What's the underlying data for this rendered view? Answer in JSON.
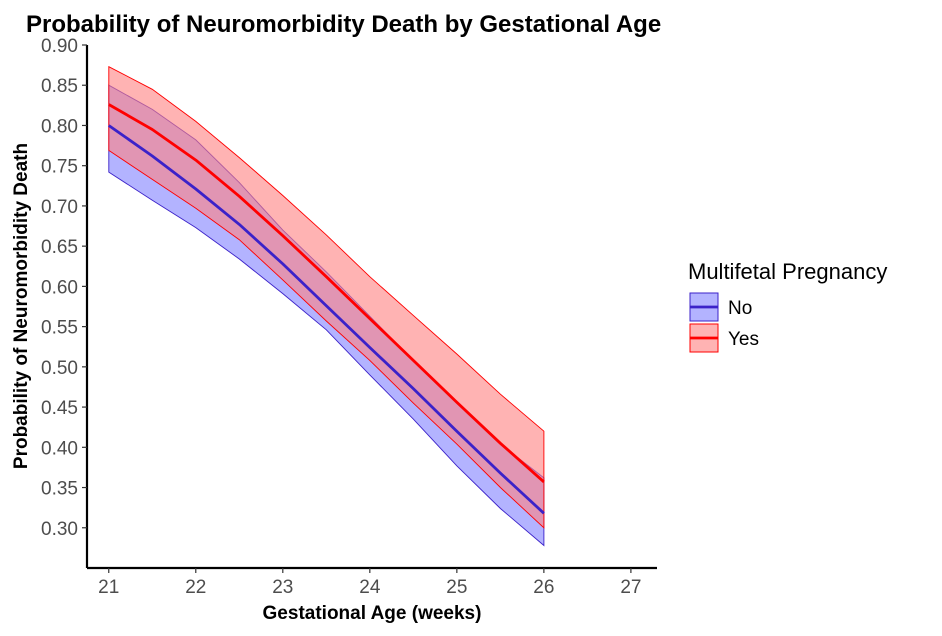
{
  "chart_data": {
    "type": "line",
    "title": "Probability of Neuromorbidity Death by Gestational Age",
    "xlabel": "Gestational Age (weeks)",
    "ylabel": "Probability of Neuromorbidity Death",
    "xlim": [
      20.75,
      27.3
    ],
    "ylim": [
      0.25,
      0.9
    ],
    "x_ticks": [
      21,
      22,
      23,
      24,
      25,
      26,
      27
    ],
    "x_tick_labels": [
      "21",
      "22",
      "23",
      "24",
      "25",
      "26",
      "27"
    ],
    "y_ticks": [
      0.3,
      0.35,
      0.4,
      0.45,
      0.5,
      0.55,
      0.6,
      0.65,
      0.7,
      0.75,
      0.8,
      0.85,
      0.9
    ],
    "y_tick_labels": [
      "0.30",
      "0.35",
      "0.40",
      "0.45",
      "0.50",
      "0.55",
      "0.60",
      "0.65",
      "0.70",
      "0.75",
      "0.80",
      "0.85",
      "0.90"
    ],
    "grid": false,
    "legend": {
      "title": "Multifetal Pregnancy",
      "position": "right"
    },
    "x": [
      21,
      21.5,
      22,
      22.5,
      23,
      23.5,
      24,
      24.5,
      25,
      25.5,
      26
    ],
    "series": [
      {
        "name": "No",
        "color": "#3b22c9",
        "fill": "#8080ff",
        "values": [
          0.8,
          0.762,
          0.721,
          0.677,
          0.628,
          0.576,
          0.524,
          0.473,
          0.42,
          0.368,
          0.318
        ],
        "lower": [
          0.742,
          0.707,
          0.673,
          0.634,
          0.591,
          0.546,
          0.49,
          0.435,
          0.377,
          0.324,
          0.278
        ],
        "upper": [
          0.85,
          0.82,
          0.782,
          0.729,
          0.67,
          0.618,
          0.563,
          0.508,
          0.455,
          0.404,
          0.362
        ]
      },
      {
        "name": "Yes",
        "color": "#ff0000",
        "fill": "#ff8080",
        "values": [
          0.826,
          0.795,
          0.757,
          0.712,
          0.663,
          0.612,
          0.56,
          0.508,
          0.456,
          0.405,
          0.357
        ],
        "lower": [
          0.769,
          0.733,
          0.697,
          0.658,
          0.608,
          0.557,
          0.508,
          0.455,
          0.404,
          0.35,
          0.3
        ],
        "upper": [
          0.873,
          0.845,
          0.805,
          0.76,
          0.713,
          0.664,
          0.612,
          0.564,
          0.516,
          0.466,
          0.42
        ]
      }
    ]
  }
}
